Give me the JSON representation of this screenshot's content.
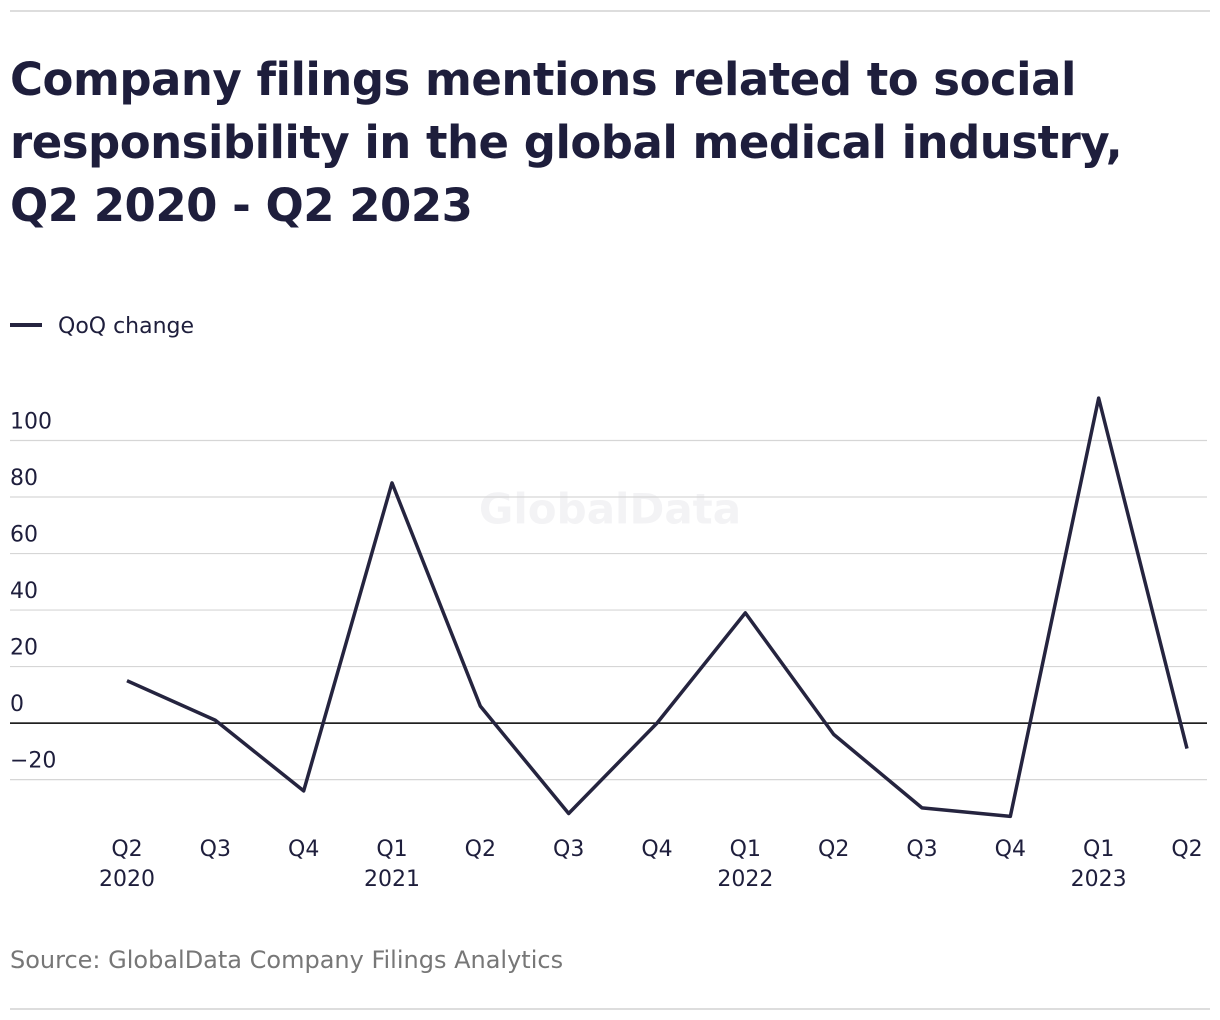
{
  "chart_data": {
    "type": "line",
    "title": "Company filings mentions related to social responsibility in the global medical industry, Q2 2020 - Q2 2023",
    "categories": [
      "Q2",
      "Q3",
      "Q4",
      "Q1",
      "Q2",
      "Q3",
      "Q4",
      "Q1",
      "Q2",
      "Q3",
      "Q4",
      "Q1",
      "Q2"
    ],
    "category_years": [
      "2020",
      null,
      null,
      "2021",
      null,
      null,
      null,
      "2022",
      null,
      null,
      null,
      "2023",
      null
    ],
    "series": [
      {
        "name": "QoQ change",
        "color": "#25243f",
        "values": [
          15,
          1,
          -24,
          85,
          6,
          -32,
          0,
          39,
          -4,
          -30,
          -33,
          115,
          -9
        ]
      }
    ],
    "ylim": [
      -35,
      120
    ],
    "yticks": [
      {
        "value": -20,
        "label": "−20"
      },
      0,
      20,
      40,
      60,
      80,
      100
    ],
    "grid": true,
    "watermark": "GlobalData",
    "source": "Source: GlobalData Company Filings Analytics"
  }
}
